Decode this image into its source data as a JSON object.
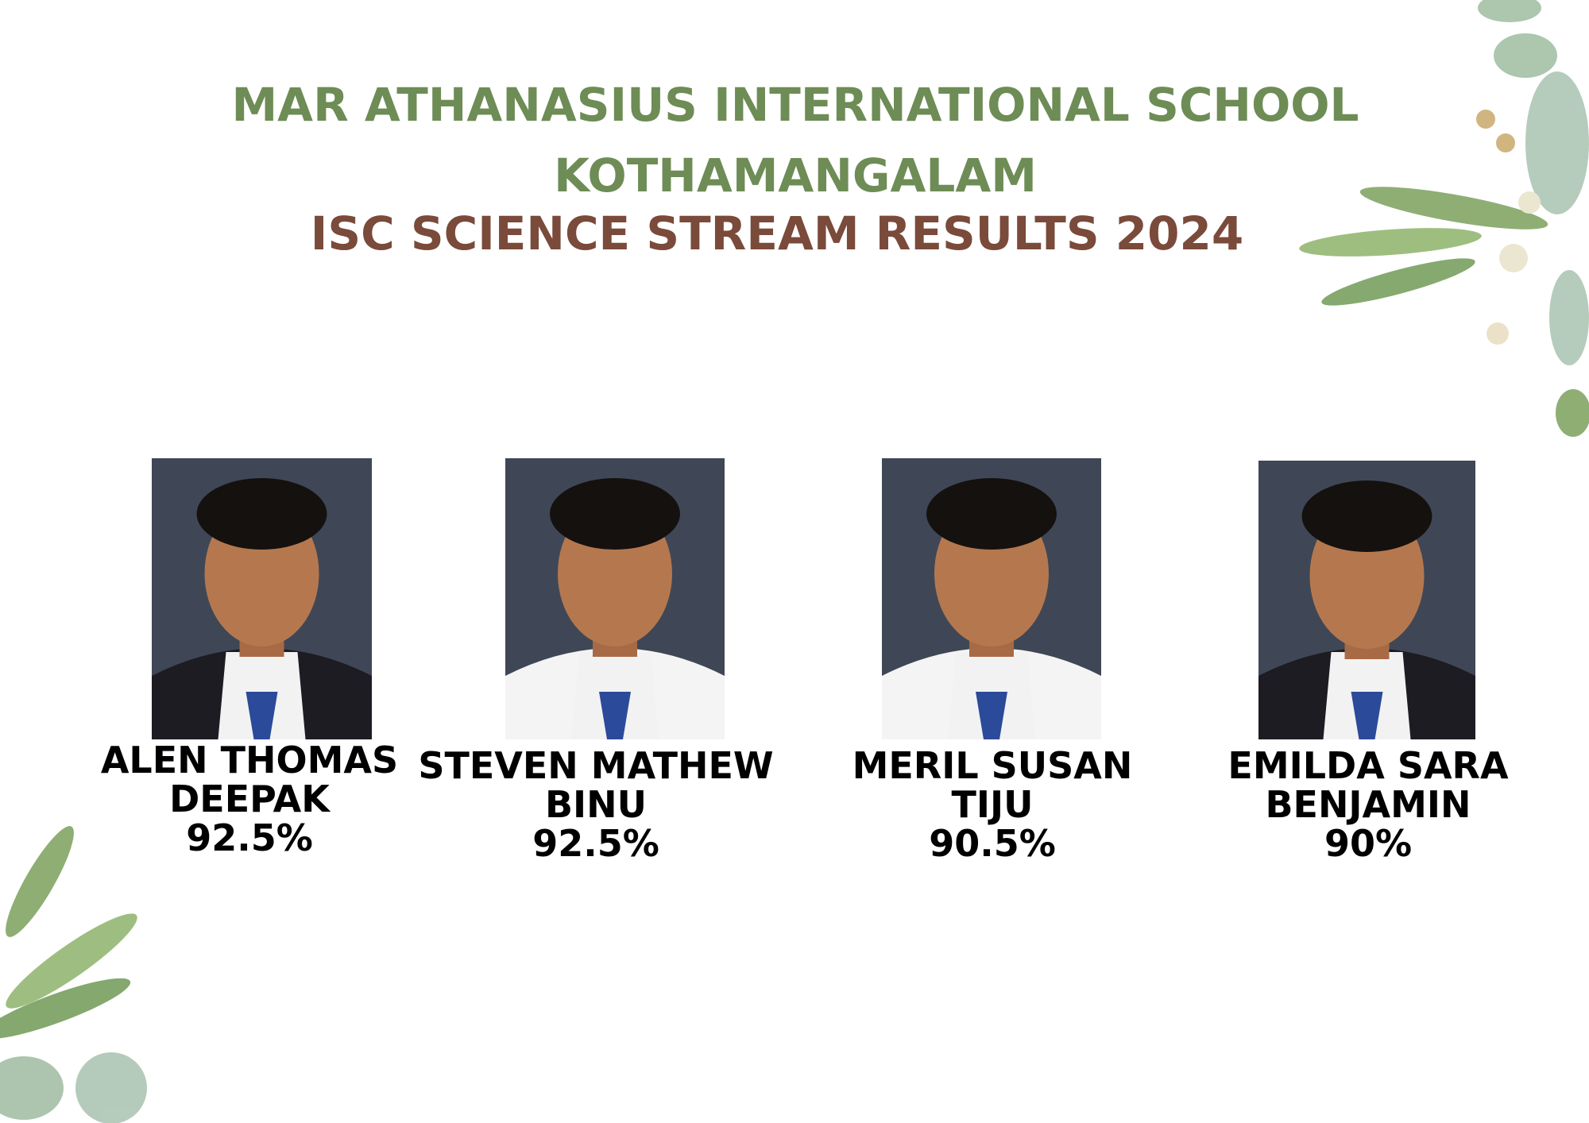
{
  "header": {
    "title_lines": [
      "MAR ATHANASIUS INTERNATIONAL SCHOOL",
      "KOTHAMANGALAM"
    ],
    "subtitle": "ISC SCIENCE STREAM RESULTS 2024"
  },
  "students": [
    {
      "name_lines": [
        "ALEN THOMAS",
        "DEEPAK"
      ],
      "score": "92.5%"
    },
    {
      "name_lines": [
        "STEVEN MATHEW",
        "BINU"
      ],
      "score": "92.5%"
    },
    {
      "name_lines": [
        "MERIL SUSAN",
        "TIJU"
      ],
      "score": "90.5%"
    },
    {
      "name_lines": [
        "EMILDA SARA",
        "BENJAMIN"
      ],
      "score": "90%"
    }
  ]
}
